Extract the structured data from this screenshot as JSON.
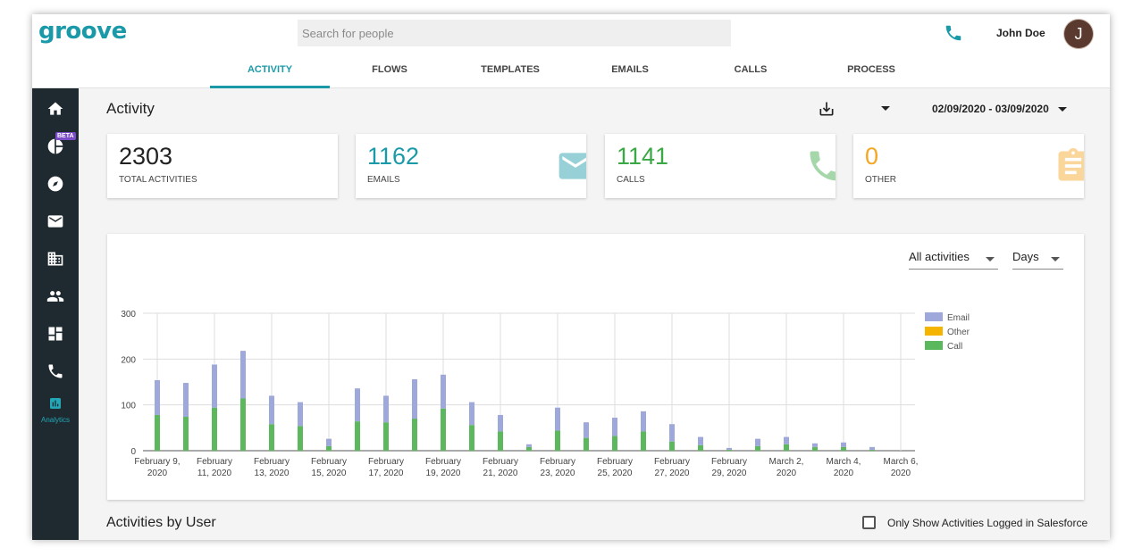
{
  "app": {
    "logo": "groove"
  },
  "search": {
    "placeholder": "Search for people"
  },
  "user": {
    "name": "John Doe",
    "initial": "J"
  },
  "tabs": [
    {
      "label": "ACTIVITY",
      "active": true
    },
    {
      "label": "FLOWS",
      "active": false
    },
    {
      "label": "TEMPLATES",
      "active": false
    },
    {
      "label": "EMAILS",
      "active": false
    },
    {
      "label": "CALLS",
      "active": false
    },
    {
      "label": "PROCESS",
      "active": false
    }
  ],
  "sidebar": {
    "items": [
      {
        "icon": "home-icon"
      },
      {
        "icon": "pie-chart-icon",
        "badge": "BETA"
      },
      {
        "icon": "compass-icon"
      },
      {
        "icon": "mail-icon"
      },
      {
        "icon": "building-icon"
      },
      {
        "icon": "people-icon"
      },
      {
        "icon": "dashboard-icon"
      },
      {
        "icon": "phone-icon"
      },
      {
        "icon": "analytics-icon",
        "label": "Analytics",
        "active": true
      }
    ]
  },
  "activity": {
    "title": "Activity",
    "date_range": "02/09/2020 - 03/09/2020"
  },
  "cards": [
    {
      "value": "2303",
      "label": "TOTAL ACTIVITIES",
      "color": "#222222"
    },
    {
      "value": "1162",
      "label": "EMAILS",
      "color": "#1a9aa8",
      "icon": "mail-icon"
    },
    {
      "value": "1141",
      "label": "CALLS",
      "color": "#3aa845",
      "icon": "phone-icon"
    },
    {
      "value": "0",
      "label": "OTHER",
      "color": "#f5a623",
      "icon": "clipboard-icon"
    }
  ],
  "filters": {
    "activities": "All activities",
    "interval": "Days"
  },
  "chart_data": {
    "type": "bar",
    "stacked": true,
    "ylim": [
      0,
      300
    ],
    "yticks": [
      0,
      100,
      200,
      300
    ],
    "xtick_labels": [
      [
        "February 9,",
        "2020"
      ],
      [
        "February",
        "11, 2020"
      ],
      [
        "February",
        "13, 2020"
      ],
      [
        "February",
        "15, 2020"
      ],
      [
        "February",
        "17, 2020"
      ],
      [
        "February",
        "19, 2020"
      ],
      [
        "February",
        "21, 2020"
      ],
      [
        "February",
        "23, 2020"
      ],
      [
        "February",
        "25, 2020"
      ],
      [
        "February",
        "27, 2020"
      ],
      [
        "February",
        "29, 2020"
      ],
      [
        "March 2,",
        "2020"
      ],
      [
        "March 4,",
        "2020"
      ],
      [
        "March 6,",
        "2020"
      ]
    ],
    "categories": [
      "Feb 9",
      "Feb 10",
      "Feb 11",
      "Feb 12",
      "Feb 13",
      "Feb 14",
      "Feb 15",
      "Feb 16",
      "Feb 17",
      "Feb 18",
      "Feb 19",
      "Feb 20",
      "Feb 21",
      "Feb 22",
      "Feb 23",
      "Feb 24",
      "Feb 25",
      "Feb 26",
      "Feb 27",
      "Feb 28",
      "Feb 29",
      "Mar 1",
      "Mar 2",
      "Mar 3",
      "Mar 4",
      "Mar 5",
      "Mar 6"
    ],
    "series": [
      {
        "name": "Email",
        "color": "#9fa8da",
        "values": [
          76,
          74,
          94,
          104,
          62,
          52,
          16,
          72,
          58,
          86,
          74,
          50,
          36,
          6,
          50,
          34,
          40,
          44,
          38,
          18,
          4,
          16,
          16,
          8,
          10,
          6,
          0
        ]
      },
      {
        "name": "Other",
        "color": "#f5b400",
        "values": [
          0,
          0,
          0,
          0,
          0,
          0,
          0,
          0,
          0,
          0,
          0,
          0,
          0,
          0,
          0,
          0,
          0,
          0,
          0,
          0,
          0,
          0,
          0,
          0,
          0,
          0,
          0
        ]
      },
      {
        "name": "Call",
        "color": "#5cb85c",
        "values": [
          78,
          74,
          94,
          114,
          58,
          54,
          10,
          64,
          62,
          70,
          92,
          56,
          42,
          8,
          44,
          28,
          32,
          42,
          20,
          12,
          2,
          10,
          14,
          8,
          8,
          2,
          0
        ]
      }
    ],
    "legend_position": "top-right",
    "grid": true
  },
  "users_section": {
    "title": "Activities by User",
    "salesforce_filter": "Only Show Activities Logged in Salesforce"
  }
}
